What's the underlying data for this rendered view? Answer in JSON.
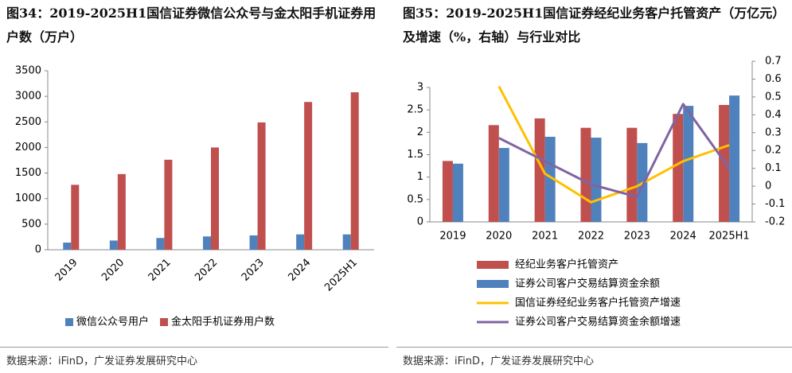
{
  "chart_data": [
    {
      "type": "bar",
      "title": "图34：2019-2025H1国信证券微信公众号与金太阳手机证券用户数（万户）",
      "categories": [
        "2019",
        "2020",
        "2021",
        "2022",
        "2023",
        "2024",
        "2025H1"
      ],
      "series": [
        {
          "name": "微信公众号用户",
          "color": "#4f81bd",
          "values": [
            140,
            180,
            230,
            260,
            280,
            300,
            300
          ]
        },
        {
          "name": "金太阳手机证券用户数",
          "color": "#c0504d",
          "values": [
            1270,
            1480,
            1760,
            2000,
            2490,
            2890,
            3080
          ]
        }
      ],
      "ylim": [
        0,
        3500
      ],
      "yticks": [
        0,
        500,
        1000,
        1500,
        2000,
        2500,
        3000,
        3500
      ],
      "source": "数据来源：iFinD，广发证券发展研究中心"
    },
    {
      "type": "bar",
      "title": "图35：2019-2025H1国信证券经纪业务客户托管资产（万亿元）及增速（%，右轴）与行业对比",
      "categories": [
        "2019",
        "2020",
        "2021",
        "2022",
        "2023",
        "2024",
        "2025H1"
      ],
      "series": [
        {
          "name": "经纪业务客户托管资产",
          "color": "#c0504d",
          "values": [
            1.36,
            2.16,
            2.31,
            2.1,
            2.1,
            2.41,
            2.61
          ]
        },
        {
          "name": "证券公司客户交易结算资金余额",
          "color": "#4f81bd",
          "values": [
            1.3,
            1.65,
            1.9,
            1.88,
            1.76,
            2.59,
            2.82
          ]
        },
        {
          "name": "国信证券经纪业务客户托管资产增速",
          "color": "#ffc000",
          "axis": "y2",
          "values": [
            null,
            0.56,
            0.07,
            -0.09,
            0.0,
            0.14,
            0.23
          ]
        },
        {
          "name": "证券公司客户交易结算资金余额增速",
          "color": "#8064a2",
          "axis": "y2",
          "values": [
            null,
            0.27,
            0.14,
            0.01,
            -0.06,
            0.46,
            0.1
          ]
        }
      ],
      "ylim": [
        0,
        3
      ],
      "yticks": [
        0,
        0.5,
        1,
        1.5,
        2,
        2.5,
        3
      ],
      "y2lim": [
        -0.2,
        0.7
      ],
      "y2ticks": [
        -0.2,
        -0.1,
        0,
        0.1,
        0.2,
        0.3,
        0.4,
        0.5,
        0.6,
        0.7
      ],
      "source": "数据来源：iFinD，广发证券发展研究中心"
    }
  ]
}
